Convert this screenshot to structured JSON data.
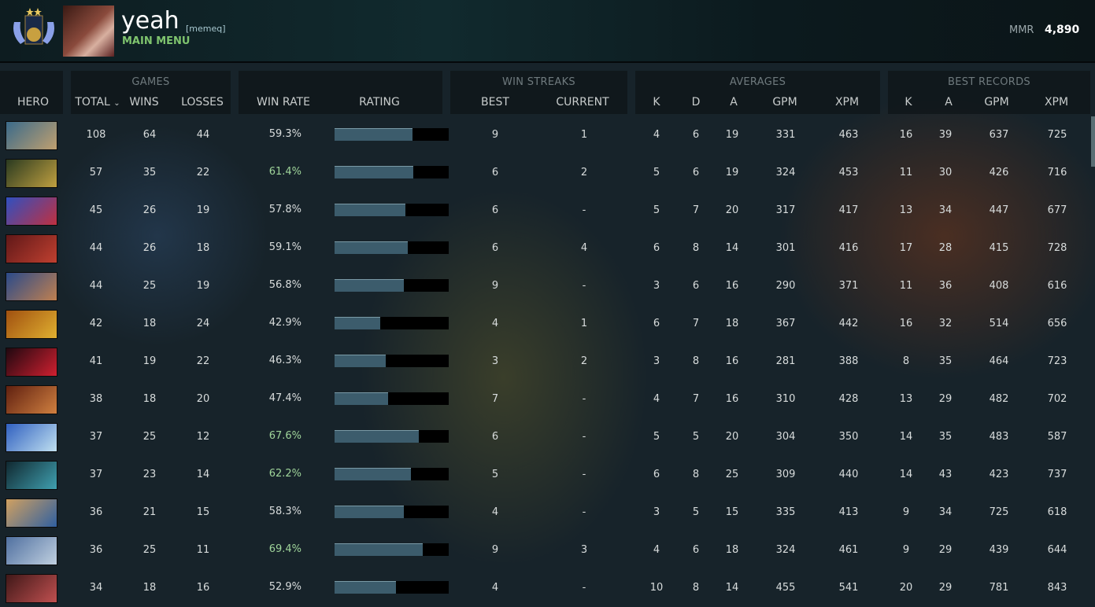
{
  "header": {
    "username": "yeah",
    "tag": "[memeq]",
    "menu_label": "MAIN MENU",
    "mmr_label": "MMR",
    "mmr_value": "4,890"
  },
  "groups": {
    "games": "GAMES",
    "win_streaks": "WIN STREAKS",
    "averages": "AVERAGES",
    "best_records": "BEST RECORDS"
  },
  "columns": {
    "hero": "HERO",
    "total": "TOTAL",
    "wins": "WINS",
    "losses": "LOSSES",
    "win_rate": "WIN RATE",
    "rating": "RATING",
    "best": "BEST",
    "current": "CURRENT",
    "k": "K",
    "d": "D",
    "a": "A",
    "gpm": "GPM",
    "xpm": "XPM",
    "best_k": "K",
    "best_a": "A",
    "best_gpm": "GPM",
    "best_xpm": "XPM"
  },
  "sort": {
    "column": "total",
    "direction": "desc"
  },
  "colors": {
    "high_winrate": "#9fd49a",
    "normal_winrate": "#d8dcdc",
    "bar_fill": "#3c5c6c",
    "bar_bg": "#000000"
  },
  "rows": [
    {
      "hero_color": [
        "#3a6a8a",
        "#c0a070"
      ],
      "total": "108",
      "wins": "64",
      "losses": "44",
      "win_rate": "59.3%",
      "rating": 0.68,
      "best": "9",
      "current": "1",
      "k": "4",
      "d": "6",
      "a": "19",
      "gpm": "331",
      "xpm": "463",
      "bk": "16",
      "ba": "39",
      "bgpm": "637",
      "bxpm": "725"
    },
    {
      "hero_color": [
        "#2a3a20",
        "#c0a040"
      ],
      "total": "57",
      "wins": "35",
      "losses": "22",
      "win_rate": "61.4%",
      "rating": 0.69,
      "best": "6",
      "current": "2",
      "k": "5",
      "d": "6",
      "a": "19",
      "gpm": "324",
      "xpm": "453",
      "bk": "11",
      "ba": "30",
      "bgpm": "426",
      "bxpm": "716"
    },
    {
      "hero_color": [
        "#3050c0",
        "#c03040"
      ],
      "total": "45",
      "wins": "26",
      "losses": "19",
      "win_rate": "57.8%",
      "rating": 0.62,
      "best": "6",
      "current": "-",
      "k": "5",
      "d": "7",
      "a": "20",
      "gpm": "317",
      "xpm": "417",
      "bk": "13",
      "ba": "34",
      "bgpm": "447",
      "bxpm": "677"
    },
    {
      "hero_color": [
        "#601818",
        "#c04030"
      ],
      "total": "44",
      "wins": "26",
      "losses": "18",
      "win_rate": "59.1%",
      "rating": 0.64,
      "best": "6",
      "current": "4",
      "k": "6",
      "d": "8",
      "a": "14",
      "gpm": "301",
      "xpm": "416",
      "bk": "17",
      "ba": "28",
      "bgpm": "415",
      "bxpm": "728"
    },
    {
      "hero_color": [
        "#2a4a8a",
        "#c08050"
      ],
      "total": "44",
      "wins": "25",
      "losses": "19",
      "win_rate": "56.8%",
      "rating": 0.61,
      "best": "9",
      "current": "-",
      "k": "3",
      "d": "6",
      "a": "16",
      "gpm": "290",
      "xpm": "371",
      "bk": "11",
      "ba": "36",
      "bgpm": "408",
      "bxpm": "616"
    },
    {
      "hero_color": [
        "#a05010",
        "#e0b030"
      ],
      "total": "42",
      "wins": "18",
      "losses": "24",
      "win_rate": "42.9%",
      "rating": 0.4,
      "best": "4",
      "current": "1",
      "k": "6",
      "d": "7",
      "a": "18",
      "gpm": "367",
      "xpm": "442",
      "bk": "16",
      "ba": "32",
      "bgpm": "514",
      "bxpm": "656"
    },
    {
      "hero_color": [
        "#200810",
        "#d02030"
      ],
      "total": "41",
      "wins": "19",
      "losses": "22",
      "win_rate": "46.3%",
      "rating": 0.45,
      "best": "3",
      "current": "2",
      "k": "3",
      "d": "8",
      "a": "16",
      "gpm": "281",
      "xpm": "388",
      "bk": "8",
      "ba": "35",
      "bgpm": "464",
      "bxpm": "723"
    },
    {
      "hero_color": [
        "#602010",
        "#d08040"
      ],
      "total": "38",
      "wins": "18",
      "losses": "20",
      "win_rate": "47.4%",
      "rating": 0.47,
      "best": "7",
      "current": "-",
      "k": "4",
      "d": "7",
      "a": "16",
      "gpm": "310",
      "xpm": "428",
      "bk": "13",
      "ba": "29",
      "bgpm": "482",
      "bxpm": "702"
    },
    {
      "hero_color": [
        "#3060c0",
        "#c0e0f0"
      ],
      "total": "37",
      "wins": "25",
      "losses": "12",
      "win_rate": "67.6%",
      "rating": 0.74,
      "best": "6",
      "current": "-",
      "k": "5",
      "d": "5",
      "a": "20",
      "gpm": "304",
      "xpm": "350",
      "bk": "14",
      "ba": "35",
      "bgpm": "483",
      "bxpm": "587"
    },
    {
      "hero_color": [
        "#102830",
        "#40a0b0"
      ],
      "total": "37",
      "wins": "23",
      "losses": "14",
      "win_rate": "62.2%",
      "rating": 0.67,
      "best": "5",
      "current": "-",
      "k": "6",
      "d": "8",
      "a": "25",
      "gpm": "309",
      "xpm": "440",
      "bk": "14",
      "ba": "43",
      "bgpm": "423",
      "bxpm": "737"
    },
    {
      "hero_color": [
        "#d0a060",
        "#3060a0"
      ],
      "total": "36",
      "wins": "21",
      "losses": "15",
      "win_rate": "58.3%",
      "rating": 0.61,
      "best": "4",
      "current": "-",
      "k": "3",
      "d": "5",
      "a": "15",
      "gpm": "335",
      "xpm": "413",
      "bk": "9",
      "ba": "34",
      "bgpm": "725",
      "bxpm": "618"
    },
    {
      "hero_color": [
        "#5070a0",
        "#c0d0e0"
      ],
      "total": "36",
      "wins": "25",
      "losses": "11",
      "win_rate": "69.4%",
      "rating": 0.77,
      "best": "9",
      "current": "3",
      "k": "4",
      "d": "6",
      "a": "18",
      "gpm": "324",
      "xpm": "461",
      "bk": "9",
      "ba": "29",
      "bgpm": "439",
      "bxpm": "644"
    },
    {
      "hero_color": [
        "#401818",
        "#c05050"
      ],
      "total": "34",
      "wins": "18",
      "losses": "16",
      "win_rate": "52.9%",
      "rating": 0.54,
      "best": "4",
      "current": "-",
      "k": "10",
      "d": "8",
      "a": "14",
      "gpm": "455",
      "xpm": "541",
      "bk": "20",
      "ba": "29",
      "bgpm": "781",
      "bxpm": "843"
    }
  ]
}
